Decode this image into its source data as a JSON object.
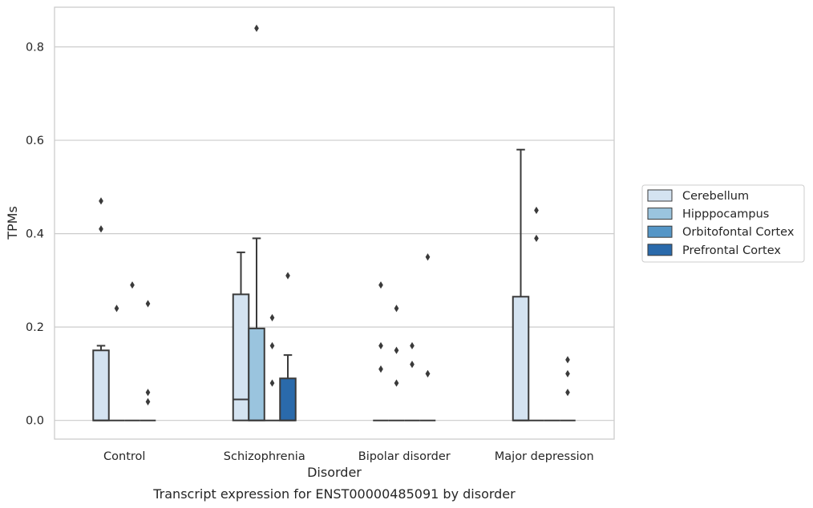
{
  "caption": "Transcript expression for ENST00000485091 by disorder",
  "chart_data": {
    "type": "box",
    "title": "",
    "xlabel": "Disorder",
    "ylabel": "TPMs",
    "ylim": [
      -0.04,
      0.885
    ],
    "yticks": [
      0.0,
      0.2,
      0.4,
      0.6,
      0.8
    ],
    "ytick_labels": [
      "0.0",
      "0.2",
      "0.4",
      "0.6",
      "0.8"
    ],
    "grid": "horizontal",
    "legend_position": "right",
    "categories": [
      "Control",
      "Schizophrenia",
      "Bipolar disorder",
      "Major depression"
    ],
    "series": [
      {
        "name": "Cerebellum",
        "color": "#d4e3f1",
        "boxes": [
          {
            "q1": 0.0,
            "median": 0.0,
            "q3": 0.15,
            "whisker_low": 0.0,
            "whisker_high": 0.16,
            "outliers": [
              0.47,
              0.41
            ]
          },
          {
            "q1": 0.0,
            "median": 0.045,
            "q3": 0.27,
            "whisker_low": 0.0,
            "whisker_high": 0.36,
            "outliers": []
          },
          {
            "q1": 0.0,
            "median": 0.0,
            "q3": 0.0,
            "whisker_low": 0.0,
            "whisker_high": 0.0,
            "outliers": [
              0.29,
              0.16,
              0.11
            ]
          },
          {
            "q1": 0.0,
            "median": 0.0,
            "q3": 0.265,
            "whisker_low": 0.0,
            "whisker_high": 0.58,
            "outliers": []
          }
        ]
      },
      {
        "name": "Hipppocampus",
        "color": "#9ac4de",
        "boxes": [
          {
            "q1": 0.0,
            "median": 0.0,
            "q3": 0.0,
            "whisker_low": 0.0,
            "whisker_high": 0.0,
            "outliers": [
              0.24
            ]
          },
          {
            "q1": 0.0,
            "median": 0.0,
            "q3": 0.197,
            "whisker_low": 0.0,
            "whisker_high": 0.39,
            "outliers": [
              0.84
            ]
          },
          {
            "q1": 0.0,
            "median": 0.0,
            "q3": 0.0,
            "whisker_low": 0.0,
            "whisker_high": 0.0,
            "outliers": [
              0.24,
              0.15,
              0.08
            ]
          },
          {
            "q1": 0.0,
            "median": 0.0,
            "q3": 0.0,
            "whisker_low": 0.0,
            "whisker_high": 0.0,
            "outliers": [
              0.45,
              0.39
            ]
          }
        ]
      },
      {
        "name": "Orbitofontal Cortex",
        "color": "#5596c7",
        "boxes": [
          {
            "q1": 0.0,
            "median": 0.0,
            "q3": 0.0,
            "whisker_low": 0.0,
            "whisker_high": 0.0,
            "outliers": [
              0.29
            ]
          },
          {
            "q1": 0.0,
            "median": 0.0,
            "q3": 0.0,
            "whisker_low": 0.0,
            "whisker_high": 0.0,
            "outliers": [
              0.22,
              0.16,
              0.08
            ]
          },
          {
            "q1": 0.0,
            "median": 0.0,
            "q3": 0.0,
            "whisker_low": 0.0,
            "whisker_high": 0.0,
            "outliers": [
              0.16,
              0.12
            ]
          },
          {
            "q1": 0.0,
            "median": 0.0,
            "q3": 0.0,
            "whisker_low": 0.0,
            "whisker_high": 0.0,
            "outliers": []
          }
        ]
      },
      {
        "name": "Prefrontal Cortex",
        "color": "#2a6aab",
        "boxes": [
          {
            "q1": 0.0,
            "median": 0.0,
            "q3": 0.0,
            "whisker_low": 0.0,
            "whisker_high": 0.0,
            "outliers": [
              0.25,
              0.06,
              0.04
            ]
          },
          {
            "q1": 0.0,
            "median": 0.0,
            "q3": 0.09,
            "whisker_low": 0.0,
            "whisker_high": 0.14,
            "outliers": [
              0.31
            ]
          },
          {
            "q1": 0.0,
            "median": 0.0,
            "q3": 0.0,
            "whisker_low": 0.0,
            "whisker_high": 0.0,
            "outliers": [
              0.35,
              0.1,
              0.1
            ]
          },
          {
            "q1": 0.0,
            "median": 0.0,
            "q3": 0.0,
            "whisker_low": 0.0,
            "whisker_high": 0.0,
            "outliers": [
              0.13,
              0.1,
              0.06
            ]
          }
        ]
      }
    ]
  }
}
